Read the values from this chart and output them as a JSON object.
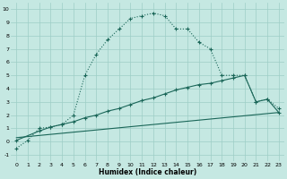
{
  "xlabel": "Humidex (Indice chaleur)",
  "background_color": "#c5e8e2",
  "grid_color": "#9dcec6",
  "line_color": "#1a6658",
  "xlim": [
    -0.5,
    23.5
  ],
  "ylim": [
    -1.5,
    10.5
  ],
  "xticks": [
    0,
    1,
    2,
    3,
    4,
    5,
    6,
    7,
    8,
    9,
    10,
    11,
    12,
    13,
    14,
    15,
    16,
    17,
    18,
    19,
    20,
    21,
    22,
    23
  ],
  "yticks": [
    -1,
    0,
    1,
    2,
    3,
    4,
    5,
    6,
    7,
    8,
    9,
    10
  ],
  "curve1_x": [
    0,
    1,
    2,
    3,
    4,
    5,
    6,
    7,
    8,
    9,
    10,
    11,
    12,
    13,
    14,
    15,
    16,
    17,
    18,
    19,
    20,
    21,
    22,
    23
  ],
  "curve1_y": [
    -0.5,
    0.1,
    1.0,
    1.1,
    1.3,
    2.0,
    5.0,
    6.6,
    7.7,
    8.5,
    9.3,
    9.5,
    9.7,
    9.5,
    8.5,
    8.5,
    7.5,
    7.0,
    5.0,
    5.0,
    5.0,
    3.0,
    3.2,
    2.5
  ],
  "curve2_x": [
    0,
    2,
    3,
    4,
    5,
    6,
    7,
    8,
    9,
    10,
    11,
    12,
    13,
    14,
    15,
    16,
    17,
    18,
    19,
    20,
    21,
    22,
    23
  ],
  "curve2_y": [
    0.1,
    0.8,
    1.1,
    1.3,
    1.5,
    1.8,
    2.0,
    2.3,
    2.5,
    2.8,
    3.1,
    3.3,
    3.6,
    3.9,
    4.1,
    4.3,
    4.4,
    4.6,
    4.8,
    5.0,
    3.0,
    3.2,
    2.2
  ],
  "curve3_x": [
    0,
    23
  ],
  "curve3_y": [
    0.3,
    2.2
  ]
}
